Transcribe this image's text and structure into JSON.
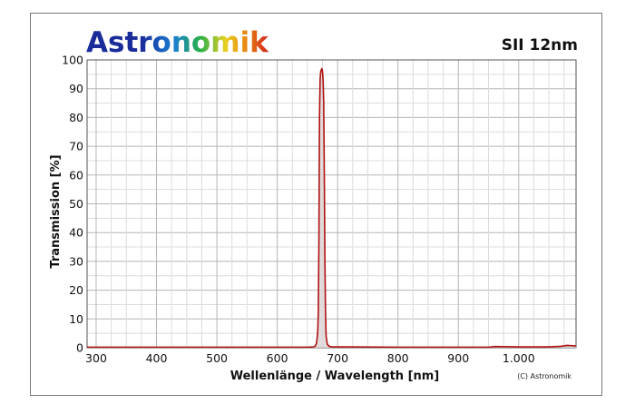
{
  "chart_data": {
    "type": "line",
    "title": "SII 12nm",
    "logo_text": "Astronomik",
    "copyright": "(C) Astronomik",
    "xlabel": "Wellenlänge / Wavelength [nm]",
    "ylabel": "Transmission [%]",
    "xlim": [
      285,
      1095
    ],
    "ylim": [
      0,
      100
    ],
    "x_ticks": [
      300,
      400,
      500,
      600,
      700,
      800,
      900,
      1000
    ],
    "x_tick_labels": [
      "300",
      "400",
      "500",
      "600",
      "700",
      "800",
      "900",
      "1.000"
    ],
    "y_ticks": [
      0,
      10,
      20,
      30,
      40,
      50,
      60,
      70,
      80,
      90,
      100
    ],
    "y_tick_labels": [
      "0",
      "10",
      "20",
      "30",
      "40",
      "50",
      "60",
      "70",
      "80",
      "90",
      "100"
    ],
    "grid": true,
    "series": [
      {
        "color": "#b01010",
        "fill": "#ddd6d6",
        "x": [
          285,
          600,
          650,
          660,
          663,
          665,
          667,
          668,
          669,
          670,
          671,
          672,
          673,
          674,
          675,
          676,
          677,
          678,
          679,
          680,
          681,
          683,
          686,
          690,
          700,
          800,
          900,
          950,
          960,
          1000,
          1050,
          1070,
          1080,
          1090,
          1095
        ],
        "y": [
          0.2,
          0.2,
          0.2,
          0.3,
          0.6,
          1.5,
          5,
          12,
          35,
          80,
          93,
          96,
          96.5,
          97,
          96,
          93,
          85,
          60,
          30,
          12,
          4,
          1.2,
          0.5,
          0.3,
          0.3,
          0.2,
          0.2,
          0.2,
          0.4,
          0.3,
          0.3,
          0.5,
          0.8,
          0.7,
          0.6
        ]
      }
    ]
  },
  "colors": {
    "logo_gradient": [
      "#1a2c9a",
      "#1a7fd0",
      "#28b04a",
      "#e8d020",
      "#e88010",
      "#d02020"
    ]
  }
}
